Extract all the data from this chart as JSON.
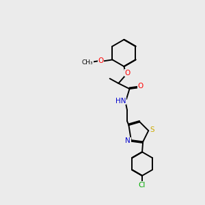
{
  "bg_color": "#ebebeb",
  "atom_colors": {
    "C": "#000000",
    "H": "#000000",
    "N": "#0000cc",
    "O": "#ff0000",
    "S": "#ccaa00",
    "Cl": "#00aa00"
  },
  "bond_color": "#000000",
  "figsize": [
    3.0,
    3.0
  ],
  "dpi": 100
}
